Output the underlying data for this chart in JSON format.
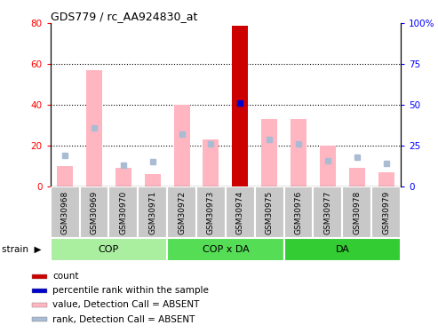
{
  "title": "GDS779 / rc_AA924830_at",
  "samples": [
    "GSM30968",
    "GSM30969",
    "GSM30970",
    "GSM30971",
    "GSM30972",
    "GSM30973",
    "GSM30974",
    "GSM30975",
    "GSM30976",
    "GSM30977",
    "GSM30978",
    "GSM30979"
  ],
  "count_values": [
    0,
    0,
    0,
    0,
    0,
    0,
    79,
    0,
    0,
    0,
    0,
    0
  ],
  "percentile_values": [
    0,
    0,
    0,
    0,
    0,
    0,
    51,
    0,
    0,
    0,
    0,
    0
  ],
  "absent_value_bars": [
    10,
    57,
    9,
    6,
    40,
    23,
    0,
    33,
    33,
    20,
    9,
    7
  ],
  "absent_rank_markers": [
    19,
    36,
    13,
    15,
    32,
    26,
    0,
    29,
    26,
    16,
    18,
    14
  ],
  "ylim_left": [
    0,
    80
  ],
  "ylim_right": [
    0,
    100
  ],
  "yticks_left": [
    0,
    20,
    40,
    60,
    80
  ],
  "yticks_right": [
    0,
    25,
    50,
    75,
    100
  ],
  "ytick_labels_left": [
    "0",
    "20",
    "40",
    "60",
    "80"
  ],
  "ytick_labels_right": [
    "0",
    "25",
    "50",
    "75",
    "100%"
  ],
  "absent_bar_color": "#FFB6C1",
  "absent_rank_color": "#AABBD4",
  "count_color": "#CC0000",
  "percentile_color": "#0000CC",
  "group_names": [
    "COP",
    "COP x DA",
    "DA"
  ],
  "group_ranges": [
    [
      0,
      3
    ],
    [
      4,
      7
    ],
    [
      8,
      11
    ]
  ],
  "group_colors": [
    "#AAEEA0",
    "#55DD55",
    "#33CC33"
  ],
  "cell_bg_color": "#C8C8C8",
  "legend_items": [
    {
      "label": "count",
      "color": "#CC0000"
    },
    {
      "label": "percentile rank within the sample",
      "color": "#0000CC"
    },
    {
      "label": "value, Detection Call = ABSENT",
      "color": "#FFB6C1"
    },
    {
      "label": "rank, Detection Call = ABSENT",
      "color": "#AABBD4"
    }
  ],
  "strain_label": "strain"
}
